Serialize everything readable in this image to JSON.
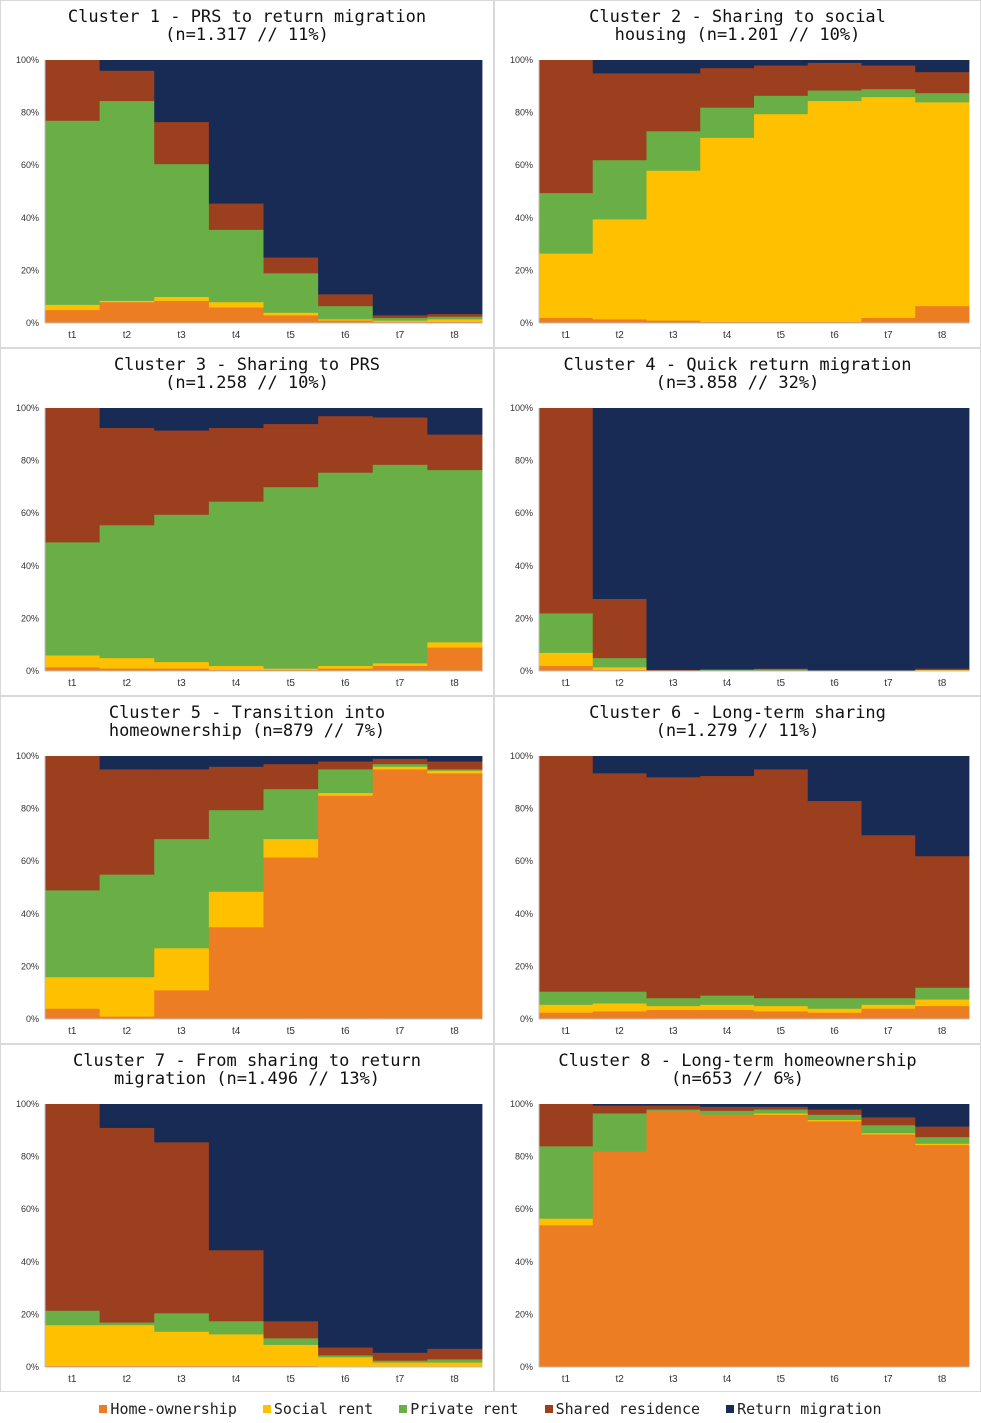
{
  "legend": [
    {
      "label": "Home-ownership",
      "color": "#ED7D22"
    },
    {
      "label": "Social rent",
      "color": "#FFC000"
    },
    {
      "label": "Private rent",
      "color": "#6AAF45"
    },
    {
      "label": "Shared residence",
      "color": "#9C3F1F"
    },
    {
      "label": "Return migration",
      "color": "#172B55"
    }
  ],
  "chart_data": [
    {
      "type": "bar",
      "stacked": true,
      "title": "Cluster 1 - PRS to return migration\n(n=1.317 // 11%)",
      "categories": [
        "t1",
        "t2",
        "t3",
        "t4",
        "t5",
        "t6",
        "t7",
        "t8"
      ],
      "yticks": [
        "0%",
        "20%",
        "40%",
        "60%",
        "80%",
        "100%"
      ],
      "ylim": [
        0,
        100
      ],
      "series": [
        {
          "name": "Home-ownership",
          "values": [
            5,
            8,
            8.5,
            6,
            3,
            1,
            0.5,
            0.5
          ]
        },
        {
          "name": "Social rent",
          "values": [
            2,
            0.5,
            1.5,
            2,
            1,
            0.5,
            0.5,
            1
          ]
        },
        {
          "name": "Private rent",
          "values": [
            70,
            76,
            50.5,
            27.5,
            15,
            5,
            1,
            1
          ]
        },
        {
          "name": "Shared residence",
          "values": [
            23,
            11.5,
            16,
            10,
            6,
            4.5,
            1,
            1
          ]
        },
        {
          "name": "Return migration",
          "values": [
            0,
            4,
            23.5,
            54.5,
            75,
            89,
            97,
            96.5
          ]
        }
      ]
    },
    {
      "type": "bar",
      "stacked": true,
      "title": "Cluster 2 - Sharing to social\nhousing (n=1.201 // 10%)",
      "categories": [
        "t1",
        "t2",
        "t3",
        "t4",
        "t5",
        "t6",
        "t7",
        "t8"
      ],
      "yticks": [
        "0%",
        "20%",
        "40%",
        "60%",
        "80%",
        "100%"
      ],
      "ylim": [
        0,
        100
      ],
      "series": [
        {
          "name": "Home-ownership",
          "values": [
            2,
            1.5,
            1,
            0.5,
            0.5,
            0.5,
            2,
            6.5
          ]
        },
        {
          "name": "Social rent",
          "values": [
            24.5,
            38,
            57,
            70,
            79,
            84,
            84,
            77.5
          ]
        },
        {
          "name": "Private rent",
          "values": [
            23,
            22.5,
            15,
            11.5,
            7,
            4,
            3,
            3.5
          ]
        },
        {
          "name": "Shared residence",
          "values": [
            50.5,
            33,
            22,
            15,
            11.5,
            10.5,
            9,
            8
          ]
        },
        {
          "name": "Return migration",
          "values": [
            0,
            5,
            5,
            3,
            2,
            1,
            2,
            4.5
          ]
        }
      ]
    },
    {
      "type": "bar",
      "stacked": true,
      "title": "Cluster 3 - Sharing to PRS\n(n=1.258 // 10%)",
      "categories": [
        "t1",
        "t2",
        "t3",
        "t4",
        "t5",
        "t6",
        "t7",
        "t8"
      ],
      "yticks": [
        "0%",
        "20%",
        "40%",
        "60%",
        "80%",
        "100%"
      ],
      "ylim": [
        0,
        100
      ],
      "series": [
        {
          "name": "Home-ownership",
          "values": [
            1.5,
            1,
            1,
            0.5,
            0.5,
            1,
            2,
            9
          ]
        },
        {
          "name": "Social rent",
          "values": [
            4.5,
            4,
            2.5,
            1.5,
            0.5,
            1,
            1,
            2
          ]
        },
        {
          "name": "Private rent",
          "values": [
            43,
            50.5,
            56,
            62.5,
            69,
            73.5,
            75.5,
            65.5
          ]
        },
        {
          "name": "Shared residence",
          "values": [
            51,
            37,
            32,
            28,
            24,
            21.5,
            18,
            13.5
          ]
        },
        {
          "name": "Return migration",
          "values": [
            0,
            7.5,
            8.5,
            7.5,
            6,
            3,
            3.5,
            10
          ]
        }
      ]
    },
    {
      "type": "bar",
      "stacked": true,
      "title": "Cluster 4 - Quick return migration\n(n=3.858 // 32%)",
      "categories": [
        "t1",
        "t2",
        "t3",
        "t4",
        "t5",
        "t6",
        "t7",
        "t8"
      ],
      "yticks": [
        "0%",
        "20%",
        "40%",
        "60%",
        "80%",
        "100%"
      ],
      "ylim": [
        0,
        100
      ],
      "series": [
        {
          "name": "Home-ownership",
          "values": [
            2,
            0.5,
            0,
            0.3,
            0.2,
            0,
            0,
            0.3
          ]
        },
        {
          "name": "Social rent",
          "values": [
            5,
            1,
            0,
            0,
            0,
            0,
            0,
            0.2
          ]
        },
        {
          "name": "Private rent",
          "values": [
            15,
            3.5,
            0,
            0.2,
            0.5,
            0,
            0,
            0
          ]
        },
        {
          "name": "Shared residence",
          "values": [
            78,
            22.5,
            0.5,
            0.3,
            0.3,
            0.3,
            0.3,
            0.5
          ]
        },
        {
          "name": "Return migration",
          "values": [
            0,
            72.5,
            99.5,
            99.2,
            99,
            99.7,
            99.7,
            99
          ]
        }
      ]
    },
    {
      "type": "bar",
      "stacked": true,
      "title": "Cluster 5 - Transition into\nhomeownership (n=879 // 7%)",
      "categories": [
        "t1",
        "t2",
        "t3",
        "t4",
        "t5",
        "t6",
        "t7",
        "t8"
      ],
      "yticks": [
        "0%",
        "20%",
        "40%",
        "60%",
        "80%",
        "100%"
      ],
      "ylim": [
        0,
        100
      ],
      "series": [
        {
          "name": "Home-ownership",
          "values": [
            4,
            1,
            11,
            35,
            61.5,
            85,
            95,
            93.5
          ]
        },
        {
          "name": "Social rent",
          "values": [
            12,
            15,
            16,
            13.5,
            7,
            1,
            1,
            1
          ]
        },
        {
          "name": "Private rent",
          "values": [
            33,
            39,
            41.5,
            31,
            19,
            9,
            1,
            0.5
          ]
        },
        {
          "name": "Shared residence",
          "values": [
            51,
            40,
            26.5,
            16.5,
            9.5,
            3,
            2,
            3
          ]
        },
        {
          "name": "Return migration",
          "values": [
            0,
            5,
            5,
            4,
            3,
            2,
            1,
            2
          ]
        }
      ]
    },
    {
      "type": "bar",
      "stacked": true,
      "title": "Cluster 6 - Long-term sharing\n(n=1.279 // 11%)",
      "categories": [
        "t1",
        "t2",
        "t3",
        "t4",
        "t5",
        "t6",
        "t7",
        "t8"
      ],
      "yticks": [
        "0%",
        "20%",
        "40%",
        "60%",
        "80%",
        "100%"
      ],
      "ylim": [
        0,
        100
      ],
      "series": [
        {
          "name": "Home-ownership",
          "values": [
            2.5,
            3,
            3.5,
            3.5,
            3,
            2.5,
            4,
            5
          ]
        },
        {
          "name": "Social rent",
          "values": [
            3,
            3,
            1.5,
            2,
            2,
            1.5,
            1.5,
            2.5
          ]
        },
        {
          "name": "Private rent",
          "values": [
            5,
            4.5,
            3,
            3.5,
            3,
            4,
            2.5,
            4.5
          ]
        },
        {
          "name": "Shared residence",
          "values": [
            89.5,
            83,
            84,
            83.5,
            87,
            75,
            62,
            50
          ]
        },
        {
          "name": "Return migration",
          "values": [
            0,
            6.5,
            8,
            7.5,
            5,
            17,
            30,
            38
          ]
        }
      ]
    },
    {
      "type": "bar",
      "stacked": true,
      "title": "Cluster 7 - From sharing to return\nmigration (n=1.496 // 13%)",
      "categories": [
        "t1",
        "t2",
        "t3",
        "t4",
        "t5",
        "t6",
        "t7",
        "t8"
      ],
      "yticks": [
        "0%",
        "20%",
        "40%",
        "60%",
        "80%",
        "100%"
      ],
      "ylim": [
        0,
        100
      ],
      "series": [
        {
          "name": "Home-ownership",
          "values": [
            0.5,
            0.5,
            0.5,
            0.5,
            0.5,
            0.3,
            0.3,
            0.3
          ]
        },
        {
          "name": "Social rent",
          "values": [
            15.5,
            15.5,
            13,
            12,
            8,
            3.5,
            1.5,
            1.5
          ]
        },
        {
          "name": "Private rent",
          "values": [
            5.5,
            1,
            7,
            5,
            2.5,
            0.7,
            0.7,
            1.2
          ]
        },
        {
          "name": "Shared residence",
          "values": [
            78.5,
            74,
            65,
            27,
            6.5,
            3,
            3,
            4
          ]
        },
        {
          "name": "Return migration",
          "values": [
            0,
            9,
            14.5,
            55.5,
            82.5,
            92.5,
            94.5,
            93
          ]
        }
      ]
    },
    {
      "type": "bar",
      "stacked": true,
      "title": "Cluster 8 - Long-term homeownership\n(n=653 // 6%)",
      "categories": [
        "t1",
        "t2",
        "t3",
        "t4",
        "t5",
        "t6",
        "t7",
        "t8"
      ],
      "yticks": [
        "0%",
        "20%",
        "40%",
        "60%",
        "80%",
        "100%"
      ],
      "ylim": [
        0,
        100
      ],
      "series": [
        {
          "name": "Home-ownership",
          "values": [
            54,
            82,
            97.5,
            96,
            96,
            93.5,
            88.5,
            84.5
          ]
        },
        {
          "name": "Social rent",
          "values": [
            2.5,
            0,
            0,
            0,
            0.5,
            0.5,
            0.5,
            0.5
          ]
        },
        {
          "name": "Private rent",
          "values": [
            27.5,
            14.5,
            0.5,
            1.5,
            1.5,
            2,
            3,
            2.5
          ]
        },
        {
          "name": "Shared residence",
          "values": [
            16,
            3,
            1.5,
            1.5,
            1,
            2,
            3,
            4
          ]
        },
        {
          "name": "Return migration",
          "values": [
            0,
            0.5,
            0.5,
            1,
            1,
            2,
            5,
            8.5
          ]
        }
      ]
    }
  ]
}
